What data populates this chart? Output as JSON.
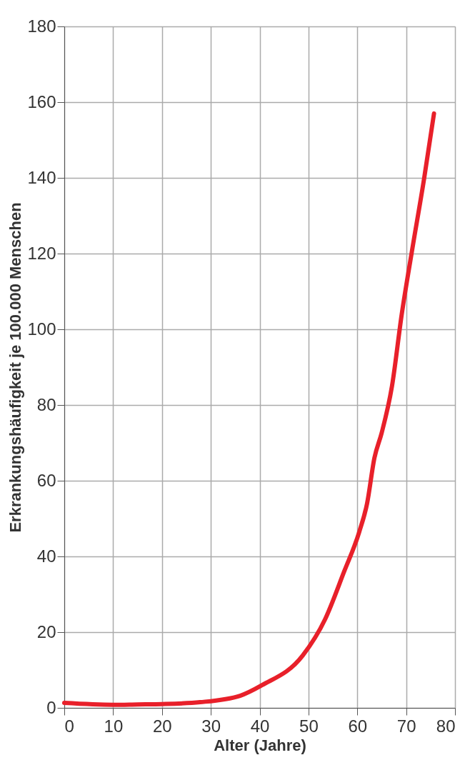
{
  "chart_data": {
    "type": "line",
    "xlabel": "Alter (Jahre)",
    "ylabel": "Erkrankungshäufigkeit je 100.000 Menschen",
    "xlim": [
      0,
      80
    ],
    "xticks": [
      0,
      10,
      20,
      30,
      40,
      50,
      60,
      70,
      80
    ],
    "ylim": [
      0,
      180
    ],
    "yticks": [
      0,
      20,
      40,
      60,
      80,
      100,
      120,
      140,
      160,
      180
    ],
    "grid": true,
    "legend": false,
    "marker": "none",
    "line_style": "solid",
    "series": [
      {
        "color": "#e8202a",
        "x": [
          0,
          10,
          15,
          20,
          27.8,
          36,
          40.5,
          48.8,
          53.4,
          57.3,
          60.4,
          62,
          63.5,
          65,
          67.1,
          69.1,
          71.1,
          73.7,
          75.7
        ],
        "values": [
          1.3,
          0.8,
          0.9,
          1,
          1.5,
          3.2,
          6,
          13.8,
          23.4,
          36,
          46.5,
          54,
          66,
          72.7,
          85,
          104,
          120,
          140,
          157
        ]
      }
    ]
  }
}
